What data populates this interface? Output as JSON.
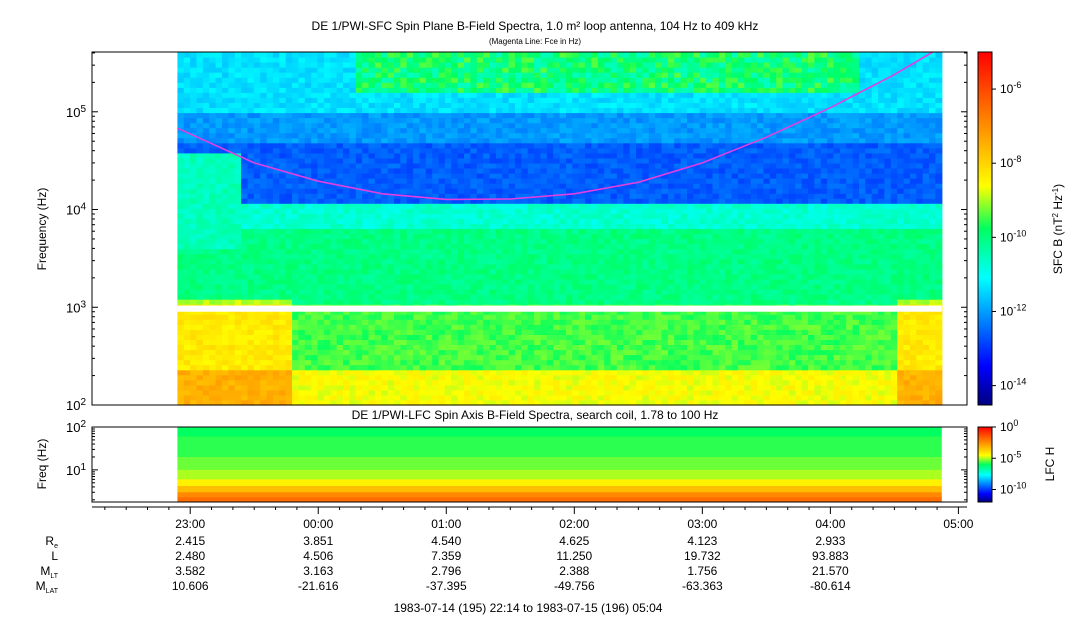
{
  "chart_data": [
    {
      "type": "heatmap",
      "title": "DE 1/PWI-SFC  Spin Plane B-Field Spectra, 1.0 m² loop antenna, 104 Hz to 409 kHz",
      "subtitle": "(Magenta Line: Fce in Hz)",
      "ylabel": "Frequency (Hz)",
      "yscale": "log",
      "ylim": [
        100,
        409000
      ],
      "yticks": [
        {
          "value": 100,
          "base": "10",
          "exp": "2"
        },
        {
          "value": 1000,
          "base": "10",
          "exp": "3"
        },
        {
          "value": 10000,
          "base": "10",
          "exp": "4"
        },
        {
          "value": 100000,
          "base": "10",
          "exp": "5"
        }
      ],
      "colorbar": {
        "label": "SFC B (nT² Hz⁻¹)",
        "label_main": "SFC B (nT",
        "label_exp1": "2",
        "label_mid": " Hz",
        "label_exp2": "-1",
        "label_end": ")",
        "scale": "log",
        "range": [
          3e-15,
          1e-05
        ],
        "ticks": [
          {
            "value": 1e-06,
            "base": "10",
            "exp": "-6"
          },
          {
            "value": 1e-08,
            "base": "10",
            "exp": "-8"
          },
          {
            "value": 1e-10,
            "base": "10",
            "exp": "-10"
          },
          {
            "value": 1e-12,
            "base": "10",
            "exp": "-12"
          },
          {
            "value": 1e-14,
            "base": "10",
            "exp": "-14"
          }
        ]
      },
      "data_time_range_hours": [
        22.9,
        28.87
      ],
      "gap_band_hz": [
        900,
        1040
      ],
      "fce_line": {
        "name": "Fce",
        "color": "#e040e0",
        "t": [
          22.9,
          23.5,
          24.0,
          24.5,
          25.0,
          25.5,
          26.0,
          26.5,
          27.0,
          27.5,
          28.0,
          28.5,
          28.8
        ],
        "f": [
          68000,
          30000,
          19500,
          14500,
          12700,
          12800,
          14500,
          19000,
          30000,
          55000,
          110000,
          240000,
          409000
        ]
      }
    },
    {
      "type": "heatmap",
      "title": "DE 1/PWI-LFC  Spin Axis B-Field Spectra, search coil, 1.78 to 100 Hz",
      "ylabel": "Freq (Hz)",
      "yscale": "log",
      "ylim": [
        1.78,
        100
      ],
      "yticks": [
        {
          "value": 10,
          "base": "10",
          "exp": "1"
        },
        {
          "value": 100,
          "base": "10",
          "exp": "2"
        }
      ],
      "colorbar": {
        "label": "LFC H",
        "scale": "log",
        "range": [
          1e-12,
          1
        ],
        "ticks": [
          {
            "value": 1,
            "base": "10",
            "exp": "0"
          },
          {
            "value": 1e-05,
            "base": "10",
            "exp": "-5"
          },
          {
            "value": 1e-10,
            "base": "10",
            "exp": "-10"
          }
        ]
      }
    }
  ],
  "xaxis": {
    "range_hours": [
      22.233,
      29.067
    ],
    "ticks": [
      {
        "t": 23,
        "label": "23:00"
      },
      {
        "t": 24,
        "label": "00:00"
      },
      {
        "t": 25,
        "label": "01:00"
      },
      {
        "t": 26,
        "label": "02:00"
      },
      {
        "t": 27,
        "label": "03:00"
      },
      {
        "t": 28,
        "label": "04:00"
      },
      {
        "t": 29,
        "label": "05:00"
      }
    ]
  },
  "ephemeris": {
    "rows": [
      {
        "name": "R",
        "sub": "e",
        "values": [
          "2.415",
          "3.851",
          "4.540",
          "4.625",
          "4.123",
          "2.933"
        ]
      },
      {
        "name": "L",
        "sub": "",
        "values": [
          "2.480",
          "4.506",
          "7.359",
          "11.250",
          "19.732",
          "93.883"
        ]
      },
      {
        "name": "M",
        "sub": "LT",
        "values": [
          "3.582",
          "3.163",
          "2.796",
          "2.388",
          "1.756",
          "21.570"
        ]
      },
      {
        "name": "M",
        "sub": "LAT",
        "values": [
          "10.606",
          "-21.616",
          "-37.395",
          "-49.756",
          "-63.363",
          "-80.614"
        ]
      }
    ],
    "footer": "1983-07-14 (195) 22:14 to 1983-07-15 (196) 05:04"
  }
}
